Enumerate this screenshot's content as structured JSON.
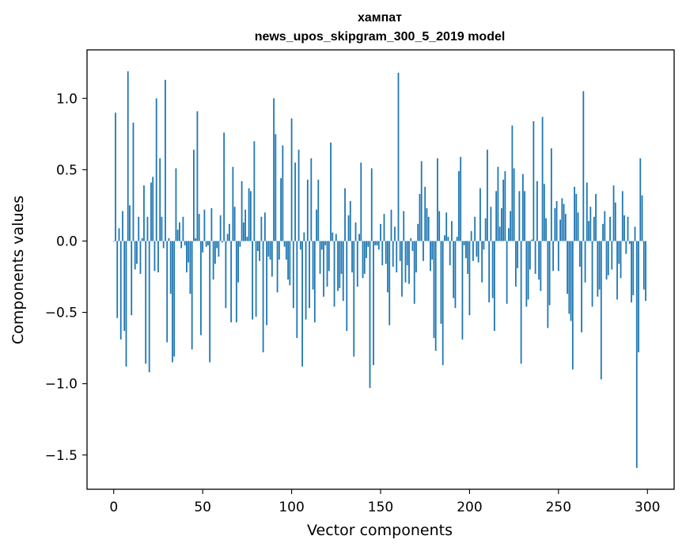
{
  "chart_data": {
    "type": "bar",
    "title_line1": "хампат",
    "title_line2": "news_upos_skipgram_300_5_2019 model",
    "xlabel": "Vector components",
    "ylabel": "Components values",
    "xlim": [
      -15,
      315
    ],
    "ylim": [
      -1.74,
      1.34
    ],
    "x_ticks": [
      0,
      50,
      100,
      150,
      200,
      250,
      300
    ],
    "x_tick_labels": [
      "0",
      "50",
      "100",
      "150",
      "200",
      "250",
      "300"
    ],
    "y_ticks": [
      1.0,
      0.5,
      0.0,
      -0.5,
      -1.0,
      -1.5
    ],
    "y_tick_labels": [
      "1.0",
      "0.5",
      "0.0",
      "−0.5",
      "−1.0",
      "−1.5"
    ],
    "bar_color": "#1f77b4",
    "grid": false,
    "values": [
      0.0,
      0.9,
      -0.54,
      0.09,
      -0.69,
      0.21,
      -0.63,
      -0.88,
      1.19,
      0.25,
      -0.52,
      0.83,
      -0.2,
      -0.16,
      0.17,
      -0.23,
      0.02,
      0.39,
      -0.86,
      0.17,
      -0.92,
      0.41,
      0.45,
      -0.21,
      1.0,
      -0.22,
      0.58,
      0.17,
      -0.05,
      1.13,
      -0.71,
      0.02,
      -0.37,
      -0.85,
      -0.81,
      0.51,
      0.08,
      0.13,
      -0.05,
      0.17,
      -0.03,
      -0.22,
      -0.15,
      -0.37,
      -0.76,
      0.64,
      0.02,
      0.91,
      0.19,
      -0.66,
      -0.08,
      0.22,
      -0.04,
      -0.03,
      -0.85,
      0.23,
      -0.27,
      -0.16,
      -0.05,
      -0.11,
      0.18,
      -0.01,
      0.76,
      -0.47,
      0.05,
      0.12,
      -0.57,
      0.52,
      0.24,
      -0.57,
      -0.29,
      -0.04,
      0.42,
      0.13,
      0.22,
      0.03,
      0.37,
      0.35,
      -0.55,
      0.7,
      -0.53,
      -0.07,
      -0.14,
      0.17,
      -0.78,
      0.2,
      -0.59,
      -0.11,
      -0.13,
      -0.25,
      1.0,
      0.75,
      -0.36,
      -0.13,
      0.44,
      0.67,
      -0.04,
      -0.13,
      -0.27,
      -0.31,
      0.86,
      -0.47,
      0.55,
      -0.68,
      0.64,
      -0.06,
      -0.88,
      0.06,
      -0.55,
      0.43,
      -0.47,
      0.58,
      -0.34,
      -0.57,
      0.22,
      0.43,
      -0.23,
      -0.06,
      -0.39,
      -0.03,
      -0.32,
      -0.21,
      0.69,
      0.06,
      -0.46,
      0.05,
      -0.35,
      -0.33,
      -0.23,
      -0.42,
      0.37,
      -0.63,
      0.18,
      0.28,
      -0.22,
      -0.81,
      0.13,
      -0.32,
      0.05,
      0.55,
      -0.26,
      -0.23,
      -0.12,
      -0.04,
      -1.03,
      0.51,
      -0.87,
      -0.03,
      -0.03,
      -0.06,
      0.12,
      -0.17,
      0.19,
      -0.16,
      -0.36,
      -0.59,
      0.22,
      -0.18,
      0.1,
      -0.22,
      1.18,
      -0.14,
      -0.39,
      0.21,
      -0.29,
      -0.17,
      -0.3,
      0.02,
      -0.07,
      -0.44,
      -0.22,
      0.12,
      0.33,
      0.56,
      -0.14,
      0.38,
      0.23,
      0.17,
      -0.21,
      -0.13,
      -0.68,
      -0.77,
      0.58,
      0.21,
      -0.58,
      -0.87,
      0.04,
      0.2,
      0.03,
      -0.17,
      0.14,
      -0.4,
      -0.47,
      0.03,
      0.49,
      0.59,
      -0.69,
      -0.03,
      -0.12,
      -0.23,
      -0.52,
      0.07,
      -0.14,
      0.17,
      -0.11,
      -0.15,
      0.37,
      -0.29,
      -0.06,
      0.16,
      0.64,
      -0.43,
      0.24,
      -0.4,
      -0.63,
      0.35,
      0.52,
      0.1,
      0.23,
      0.43,
      0.49,
      -0.44,
      0.09,
      0.21,
      0.81,
      0.51,
      -0.32,
      -0.19,
      0.35,
      -0.86,
      0.47,
      0.35,
      -0.46,
      -0.41,
      -0.2,
      0.01,
      0.84,
      -0.23,
      0.42,
      -0.27,
      -0.35,
      0.87,
      0.4,
      0.16,
      -0.61,
      -0.45,
      0.65,
      -0.21,
      0.23,
      0.28,
      -0.21,
      0.15,
      0.3,
      0.26,
      0.19,
      -0.37,
      -0.51,
      -0.56,
      -0.9,
      0.38,
      0.33,
      0.2,
      -0.18,
      -0.64,
      1.05,
      -0.29,
      0.41,
      0.14,
      0.24,
      -0.46,
      0.17,
      0.33,
      -0.39,
      -0.34,
      -0.97,
      0.12,
      0.21,
      -0.27,
      -0.24,
      0.17,
      -0.2,
      0.39,
      0.27,
      -0.41,
      -0.16,
      -0.26,
      0.35,
      0.18,
      -0.09,
      0.17,
      -0.02,
      -0.43,
      -0.38,
      0.1,
      -1.59,
      -0.78,
      0.58,
      0.32,
      -0.34,
      -0.42
    ]
  }
}
